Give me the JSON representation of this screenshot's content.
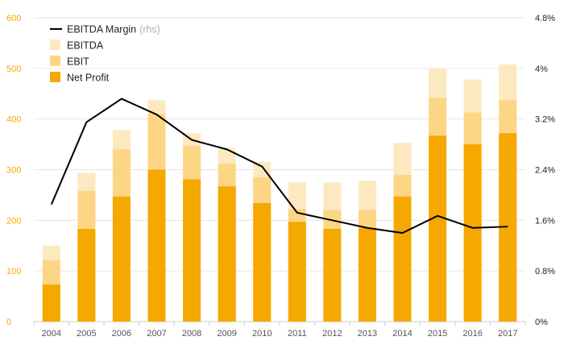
{
  "chart_data": {
    "type": "bar",
    "categories": [
      "2004",
      "2005",
      "2006",
      "2007",
      "2008",
      "2009",
      "2010",
      "2011",
      "2012",
      "2013",
      "2014",
      "2015",
      "2016",
      "2017"
    ],
    "series": [
      {
        "name": "EBITDA",
        "kind": "stacked-bar-total",
        "color": "#fde9bf",
        "values": [
          150,
          293,
          378,
          437,
          372,
          343,
          315,
          275,
          275,
          278,
          353,
          500,
          478,
          508
        ]
      },
      {
        "name": "EBIT",
        "kind": "stacked-bar-total",
        "color": "#fcd685",
        "values": [
          121,
          258,
          340,
          410,
          347,
          312,
          285,
          222,
          220,
          220,
          290,
          442,
          413,
          437
        ]
      },
      {
        "name": "Net Profit",
        "kind": "stacked-bar-total",
        "color": "#f5a800",
        "values": [
          73,
          183,
          247,
          300,
          281,
          267,
          234,
          197,
          183,
          185,
          247,
          367,
          350,
          372
        ]
      },
      {
        "name": "EBITDA Margin",
        "kind": "line",
        "axis": "right",
        "color": "#000000",
        "values": [
          1.85,
          3.15,
          3.52,
          3.27,
          2.87,
          2.72,
          2.45,
          1.72,
          1.6,
          1.48,
          1.4,
          1.67,
          1.48,
          1.5
        ]
      }
    ],
    "legend": [
      {
        "name": "EBITDA Margin",
        "suffix": "(rhs)",
        "swatch": "line",
        "color": "#000000"
      },
      {
        "name": "EBITDA",
        "swatch": "box",
        "color": "#fde9bf"
      },
      {
        "name": "EBIT",
        "swatch": "box",
        "color": "#fcd685"
      },
      {
        "name": "Net Profit",
        "swatch": "box",
        "color": "#f5a800"
      }
    ],
    "legend_position": "top-left",
    "ylim_left": [
      0,
      600
    ],
    "yticks_left": [
      "0",
      "100",
      "200",
      "300",
      "400",
      "500",
      "600"
    ],
    "ylim_right": [
      0,
      4.8
    ],
    "yticks_right": [
      "0%",
      "0.8%",
      "1.6%",
      "2.4%",
      "3.2%",
      "4%",
      "4.8%"
    ],
    "grid": true,
    "left_axis_color": "#f5a800",
    "grid_color": "#e6e6e6"
  }
}
